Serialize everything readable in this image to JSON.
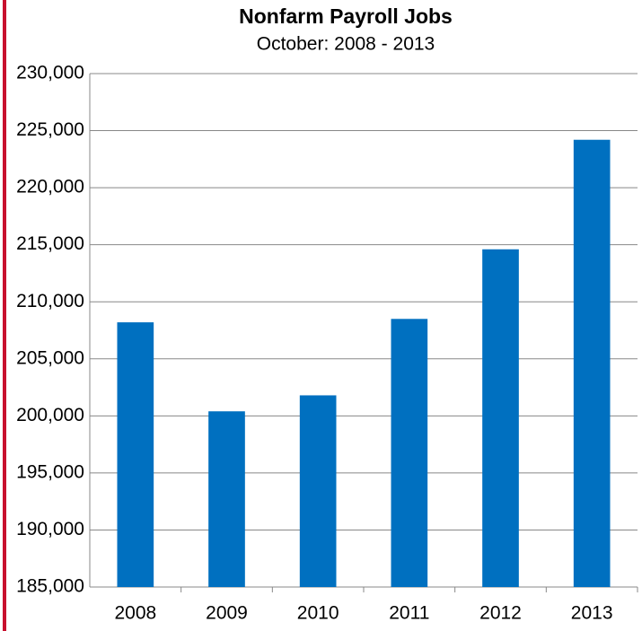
{
  "chart_data": {
    "type": "bar",
    "title": "Nonfarm Payroll Jobs",
    "subtitle": "October:  2008 - 2013",
    "categories": [
      "2008",
      "2009",
      "2010",
      "2011",
      "2012",
      "2013"
    ],
    "values": [
      208200,
      200400,
      201800,
      208500,
      214600,
      224200
    ],
    "color": "#0070c0",
    "ylim": [
      185000,
      230000
    ],
    "yticks": [
      {
        "value": 185000,
        "label": "185,000"
      },
      {
        "value": 190000,
        "label": "190,000"
      },
      {
        "value": 195000,
        "label": "195,000"
      },
      {
        "value": 200000,
        "label": "200,000"
      },
      {
        "value": 205000,
        "label": "205,000"
      },
      {
        "value": 210000,
        "label": "210,000"
      },
      {
        "value": 215000,
        "label": "215,000"
      },
      {
        "value": 220000,
        "label": "220,000"
      },
      {
        "value": 225000,
        "label": "225,000"
      },
      {
        "value": 230000,
        "label": "230,000"
      }
    ],
    "grid": true
  }
}
